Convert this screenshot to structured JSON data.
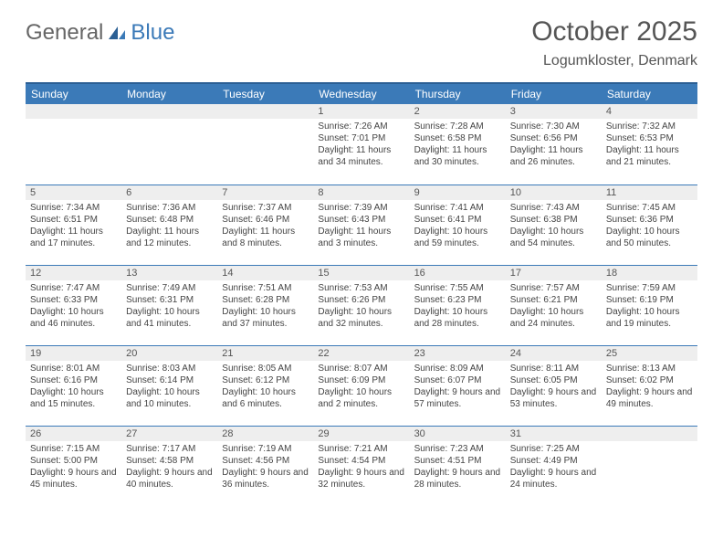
{
  "logo": {
    "general": "General",
    "blue": "Blue"
  },
  "header": {
    "month_title": "October 2025",
    "location": "Logumkloster, Denmark"
  },
  "colors": {
    "header_bg": "#3b7ab8",
    "header_border": "#2b5f94",
    "daynum_bg": "#eeeeee",
    "text": "#444444",
    "cell_border": "#3b7ab8"
  },
  "daynames": [
    "Sunday",
    "Monday",
    "Tuesday",
    "Wednesday",
    "Thursday",
    "Friday",
    "Saturday"
  ],
  "weeks": [
    [
      {
        "n": "",
        "sr": "",
        "ss": "",
        "dl": ""
      },
      {
        "n": "",
        "sr": "",
        "ss": "",
        "dl": ""
      },
      {
        "n": "",
        "sr": "",
        "ss": "",
        "dl": ""
      },
      {
        "n": "1",
        "sr": "Sunrise: 7:26 AM",
        "ss": "Sunset: 7:01 PM",
        "dl": "Daylight: 11 hours and 34 minutes."
      },
      {
        "n": "2",
        "sr": "Sunrise: 7:28 AM",
        "ss": "Sunset: 6:58 PM",
        "dl": "Daylight: 11 hours and 30 minutes."
      },
      {
        "n": "3",
        "sr": "Sunrise: 7:30 AM",
        "ss": "Sunset: 6:56 PM",
        "dl": "Daylight: 11 hours and 26 minutes."
      },
      {
        "n": "4",
        "sr": "Sunrise: 7:32 AM",
        "ss": "Sunset: 6:53 PM",
        "dl": "Daylight: 11 hours and 21 minutes."
      }
    ],
    [
      {
        "n": "5",
        "sr": "Sunrise: 7:34 AM",
        "ss": "Sunset: 6:51 PM",
        "dl": "Daylight: 11 hours and 17 minutes."
      },
      {
        "n": "6",
        "sr": "Sunrise: 7:36 AM",
        "ss": "Sunset: 6:48 PM",
        "dl": "Daylight: 11 hours and 12 minutes."
      },
      {
        "n": "7",
        "sr": "Sunrise: 7:37 AM",
        "ss": "Sunset: 6:46 PM",
        "dl": "Daylight: 11 hours and 8 minutes."
      },
      {
        "n": "8",
        "sr": "Sunrise: 7:39 AM",
        "ss": "Sunset: 6:43 PM",
        "dl": "Daylight: 11 hours and 3 minutes."
      },
      {
        "n": "9",
        "sr": "Sunrise: 7:41 AM",
        "ss": "Sunset: 6:41 PM",
        "dl": "Daylight: 10 hours and 59 minutes."
      },
      {
        "n": "10",
        "sr": "Sunrise: 7:43 AM",
        "ss": "Sunset: 6:38 PM",
        "dl": "Daylight: 10 hours and 54 minutes."
      },
      {
        "n": "11",
        "sr": "Sunrise: 7:45 AM",
        "ss": "Sunset: 6:36 PM",
        "dl": "Daylight: 10 hours and 50 minutes."
      }
    ],
    [
      {
        "n": "12",
        "sr": "Sunrise: 7:47 AM",
        "ss": "Sunset: 6:33 PM",
        "dl": "Daylight: 10 hours and 46 minutes."
      },
      {
        "n": "13",
        "sr": "Sunrise: 7:49 AM",
        "ss": "Sunset: 6:31 PM",
        "dl": "Daylight: 10 hours and 41 minutes."
      },
      {
        "n": "14",
        "sr": "Sunrise: 7:51 AM",
        "ss": "Sunset: 6:28 PM",
        "dl": "Daylight: 10 hours and 37 minutes."
      },
      {
        "n": "15",
        "sr": "Sunrise: 7:53 AM",
        "ss": "Sunset: 6:26 PM",
        "dl": "Daylight: 10 hours and 32 minutes."
      },
      {
        "n": "16",
        "sr": "Sunrise: 7:55 AM",
        "ss": "Sunset: 6:23 PM",
        "dl": "Daylight: 10 hours and 28 minutes."
      },
      {
        "n": "17",
        "sr": "Sunrise: 7:57 AM",
        "ss": "Sunset: 6:21 PM",
        "dl": "Daylight: 10 hours and 24 minutes."
      },
      {
        "n": "18",
        "sr": "Sunrise: 7:59 AM",
        "ss": "Sunset: 6:19 PM",
        "dl": "Daylight: 10 hours and 19 minutes."
      }
    ],
    [
      {
        "n": "19",
        "sr": "Sunrise: 8:01 AM",
        "ss": "Sunset: 6:16 PM",
        "dl": "Daylight: 10 hours and 15 minutes."
      },
      {
        "n": "20",
        "sr": "Sunrise: 8:03 AM",
        "ss": "Sunset: 6:14 PM",
        "dl": "Daylight: 10 hours and 10 minutes."
      },
      {
        "n": "21",
        "sr": "Sunrise: 8:05 AM",
        "ss": "Sunset: 6:12 PM",
        "dl": "Daylight: 10 hours and 6 minutes."
      },
      {
        "n": "22",
        "sr": "Sunrise: 8:07 AM",
        "ss": "Sunset: 6:09 PM",
        "dl": "Daylight: 10 hours and 2 minutes."
      },
      {
        "n": "23",
        "sr": "Sunrise: 8:09 AM",
        "ss": "Sunset: 6:07 PM",
        "dl": "Daylight: 9 hours and 57 minutes."
      },
      {
        "n": "24",
        "sr": "Sunrise: 8:11 AM",
        "ss": "Sunset: 6:05 PM",
        "dl": "Daylight: 9 hours and 53 minutes."
      },
      {
        "n": "25",
        "sr": "Sunrise: 8:13 AM",
        "ss": "Sunset: 6:02 PM",
        "dl": "Daylight: 9 hours and 49 minutes."
      }
    ],
    [
      {
        "n": "26",
        "sr": "Sunrise: 7:15 AM",
        "ss": "Sunset: 5:00 PM",
        "dl": "Daylight: 9 hours and 45 minutes."
      },
      {
        "n": "27",
        "sr": "Sunrise: 7:17 AM",
        "ss": "Sunset: 4:58 PM",
        "dl": "Daylight: 9 hours and 40 minutes."
      },
      {
        "n": "28",
        "sr": "Sunrise: 7:19 AM",
        "ss": "Sunset: 4:56 PM",
        "dl": "Daylight: 9 hours and 36 minutes."
      },
      {
        "n": "29",
        "sr": "Sunrise: 7:21 AM",
        "ss": "Sunset: 4:54 PM",
        "dl": "Daylight: 9 hours and 32 minutes."
      },
      {
        "n": "30",
        "sr": "Sunrise: 7:23 AM",
        "ss": "Sunset: 4:51 PM",
        "dl": "Daylight: 9 hours and 28 minutes."
      },
      {
        "n": "31",
        "sr": "Sunrise: 7:25 AM",
        "ss": "Sunset: 4:49 PM",
        "dl": "Daylight: 9 hours and 24 minutes."
      },
      {
        "n": "",
        "sr": "",
        "ss": "",
        "dl": ""
      }
    ]
  ]
}
